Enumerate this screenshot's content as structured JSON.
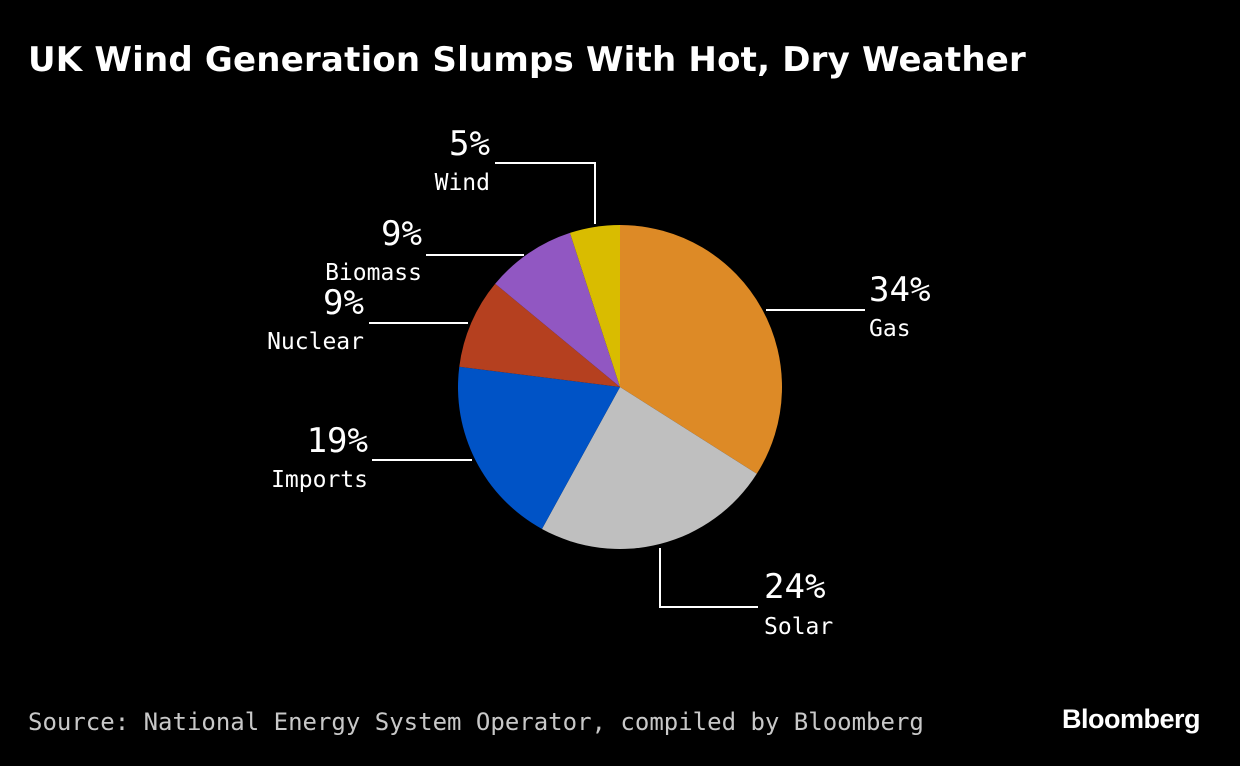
{
  "chart_data": {
    "type": "pie",
    "title": "UK Wind Generation Slumps With Hot, Dry Weather",
    "slices": [
      {
        "label": "Gas",
        "value": 34,
        "display": "34%",
        "color": "#DD8A26"
      },
      {
        "label": "Solar",
        "value": 24,
        "display": "24%",
        "color": "#BFBFBF"
      },
      {
        "label": "Imports",
        "value": 19,
        "display": "19%",
        "color": "#0053C6"
      },
      {
        "label": "Nuclear",
        "value": 9,
        "display": "9%",
        "color": "#B5401F"
      },
      {
        "label": "Biomass",
        "value": 9,
        "display": "9%",
        "color": "#9157C2"
      },
      {
        "label": "Wind",
        "value": 5,
        "display": "5%",
        "color": "#D9BC00"
      }
    ],
    "start": "12 o'clock, clockwise"
  },
  "footer": {
    "source": "Source: National Energy System Operator, compiled by Bloomberg",
    "brand": "Bloomberg"
  }
}
